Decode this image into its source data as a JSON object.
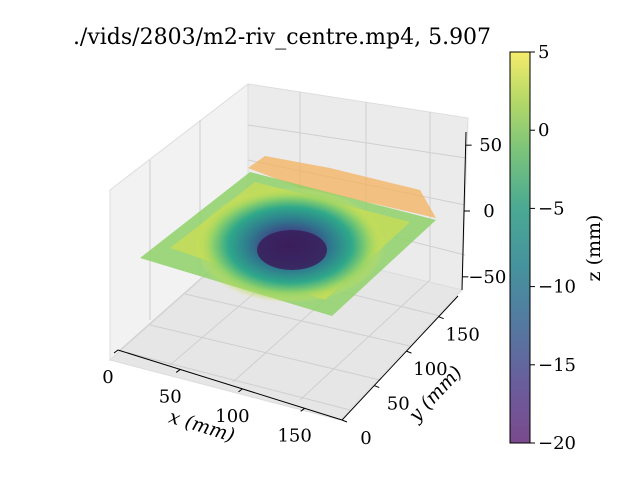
{
  "chart_data": {
    "type": "surface3d",
    "title": "./vids/2803/m2-riv_centre.mp4, 5.907",
    "xlabel": "x (mm)",
    "ylabel": "y (mm)",
    "zlabel": "",
    "colorbar_label": "z (mm)",
    "colormap": "viridis",
    "xticks": [
      "0",
      "50",
      "100",
      "150"
    ],
    "yticks": [
      "0",
      "50",
      "100",
      "150"
    ],
    "zticks": [
      "−50",
      "0",
      "50"
    ],
    "colorbar_ticks": [
      "5",
      "0",
      "−5",
      "−10",
      "−15",
      "−20"
    ],
    "xlim": [
      0,
      180
    ],
    "ylim": [
      0,
      180
    ],
    "zlim": [
      -60,
      60
    ],
    "clim": [
      -20,
      5
    ],
    "surface": {
      "description_units": "mm",
      "plane_level": 0,
      "depression_center": [
        85,
        95
      ],
      "depression_depth": -20,
      "ridge_level": 5
    }
  }
}
